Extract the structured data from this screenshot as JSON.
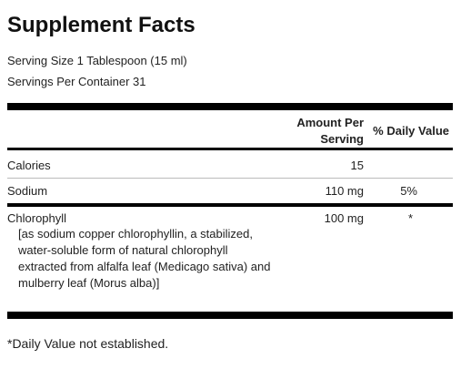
{
  "header": {
    "title": "Supplement Facts",
    "serving_size": "Serving Size 1 Tablespoon (15 ml)",
    "servings_per_container": "Servings Per Container 31"
  },
  "table": {
    "columns": {
      "amount": "Amount Per Serving",
      "daily_value": "% Daily Value"
    },
    "rows": [
      {
        "name": "Calories",
        "amount": "15"
      },
      {
        "name": "Sodium",
        "amount": "110 mg",
        "daily_value": "5%"
      },
      {
        "name": "Chlorophyll",
        "amount": "100 mg",
        "daily_value": "*",
        "description": "[as sodium copper chlorophyllin, a stabilized, water-soluble form of natural chlorophyll extracted from alfalfa leaf (Medicago sativa) and mulberry leaf (Morus alba)]"
      }
    ]
  },
  "footnote": "*Daily Value not established."
}
